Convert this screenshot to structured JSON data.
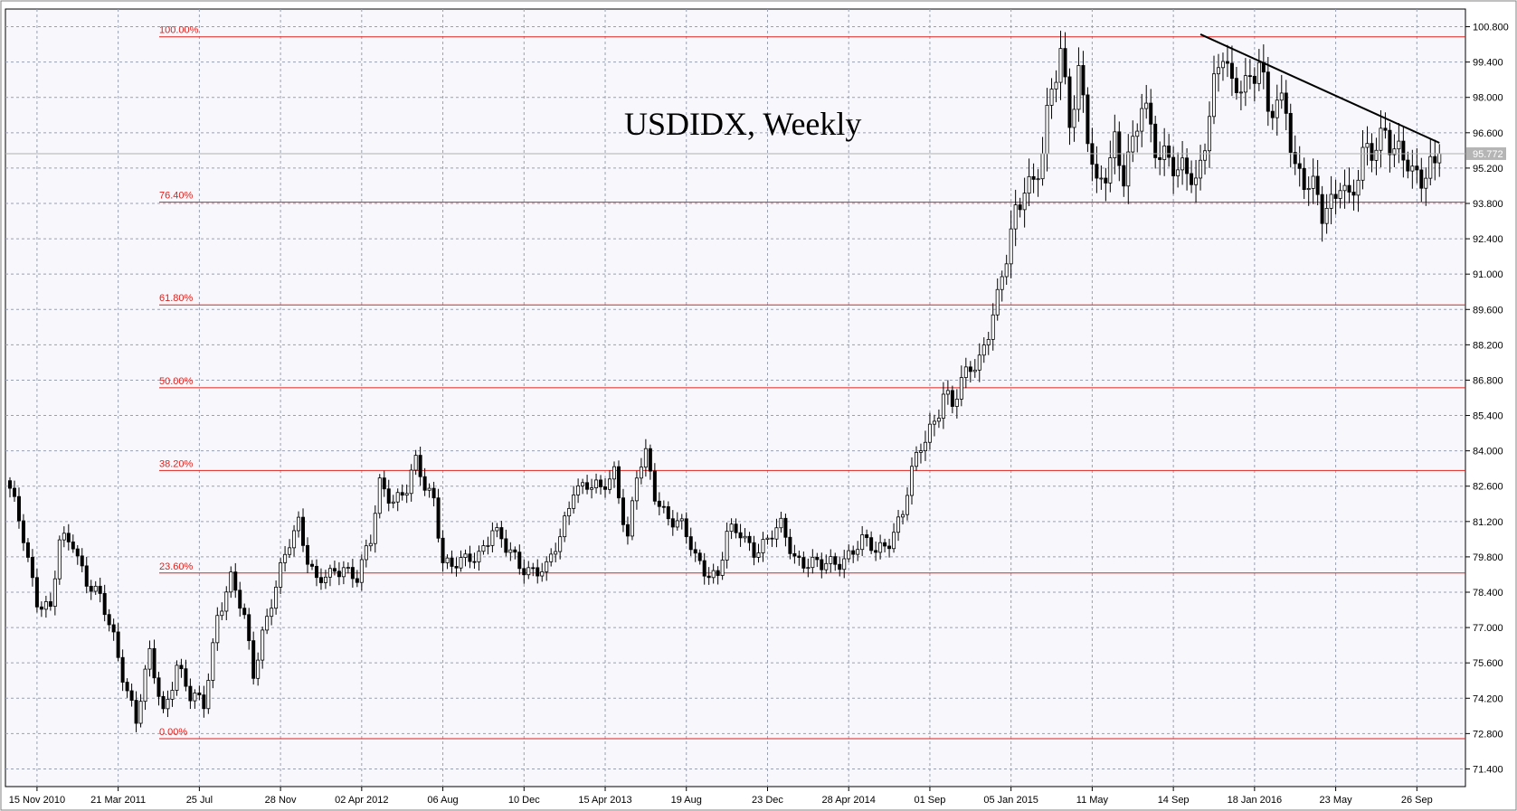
{
  "chart_data": {
    "type": "candlestick",
    "title": "USDIDX, Weekly",
    "ylim": [
      70.7,
      101.5
    ],
    "y_ticks": [
      "100.800",
      "99.400",
      "98.000",
      "96.600",
      "95.200",
      "93.800",
      "92.400",
      "91.000",
      "89.600",
      "88.200",
      "86.800",
      "85.400",
      "84.000",
      "82.600",
      "81.200",
      "79.800",
      "78.400",
      "77.000",
      "75.600",
      "74.200",
      "72.800",
      "71.400"
    ],
    "current_price": "95.772",
    "x_ticks": [
      {
        "label": "15 Nov 2010",
        "week": 6
      },
      {
        "label": "21 Mar 2011",
        "week": 24
      },
      {
        "label": "25 Jul",
        "week": 42
      },
      {
        "label": "28 Nov",
        "week": 60
      },
      {
        "label": "02 Apr 2012",
        "week": 78
      },
      {
        "label": "06 Aug",
        "week": 96
      },
      {
        "label": "10 Dec",
        "week": 114
      },
      {
        "label": "15 Apr 2013",
        "week": 132
      },
      {
        "label": "19 Aug",
        "week": 150
      },
      {
        "label": "23 Dec",
        "week": 168
      },
      {
        "label": "28 Apr 2014",
        "week": 186
      },
      {
        "label": "01 Sep",
        "week": 204
      },
      {
        "label": "05 Jan 2015",
        "week": 222
      },
      {
        "label": "11 May",
        "week": 240
      },
      {
        "label": "14 Sep",
        "week": 258
      },
      {
        "label": "18 Jan 2016",
        "week": 276
      },
      {
        "label": "23 May",
        "week": 294
      },
      {
        "label": "26 Sep",
        "week": 312
      }
    ],
    "fib_levels": [
      {
        "label": "100.00%",
        "value": 100.4
      },
      {
        "label": "76.40%",
        "value": 93.85
      },
      {
        "label": "61.80%",
        "value": 89.78
      },
      {
        "label": "50.00%",
        "value": 86.5
      },
      {
        "label": "38.20%",
        "value": 83.22
      },
      {
        "label": "23.60%",
        "value": 79.16
      },
      {
        "label": "0.00%",
        "value": 72.6
      }
    ],
    "trendline": {
      "start": {
        "week": 264,
        "value": 100.5
      },
      "end": {
        "week": 317,
        "value": 96.2
      }
    },
    "anchors": [
      [
        0,
        82.3
      ],
      [
        3,
        80.6
      ],
      [
        6,
        78.2
      ],
      [
        9,
        77.6
      ],
      [
        11,
        80.3
      ],
      [
        14,
        80.5
      ],
      [
        17,
        78.9
      ],
      [
        20,
        78.0
      ],
      [
        23,
        76.6
      ],
      [
        27,
        74.0
      ],
      [
        28,
        73.3
      ],
      [
        31,
        75.8
      ],
      [
        34,
        73.7
      ],
      [
        37,
        75.6
      ],
      [
        40,
        74.1
      ],
      [
        43,
        74.0
      ],
      [
        46,
        77.6
      ],
      [
        49,
        78.8
      ],
      [
        52,
        77.3
      ],
      [
        54,
        75.3
      ],
      [
        56,
        76.9
      ],
      [
        59,
        78.5
      ],
      [
        62,
        80.3
      ],
      [
        64,
        81.3
      ],
      [
        66,
        79.9
      ],
      [
        68,
        78.8
      ],
      [
        71,
        78.9
      ],
      [
        74,
        79.5
      ],
      [
        77,
        79.1
      ],
      [
        80,
        80.3
      ],
      [
        82,
        82.6
      ],
      [
        85,
        82.2
      ],
      [
        88,
        82.5
      ],
      [
        90,
        83.4
      ],
      [
        92,
        82.5
      ],
      [
        94,
        82.2
      ],
      [
        96,
        79.8
      ],
      [
        98,
        79.4
      ],
      [
        101,
        79.5
      ],
      [
        104,
        80.0
      ],
      [
        107,
        81.0
      ],
      [
        110,
        80.0
      ],
      [
        113,
        79.5
      ],
      [
        116,
        79.4
      ],
      [
        119,
        79.2
      ],
      [
        122,
        80.5
      ],
      [
        125,
        82.7
      ],
      [
        128,
        82.6
      ],
      [
        131,
        82.3
      ],
      [
        134,
        83.3
      ],
      [
        137,
        80.6
      ],
      [
        139,
        82.9
      ],
      [
        141,
        83.7
      ],
      [
        143,
        82.3
      ],
      [
        146,
        81.5
      ],
      [
        149,
        80.9
      ],
      [
        152,
        79.7
      ],
      [
        155,
        79.3
      ],
      [
        157,
        79.1
      ],
      [
        159,
        80.6
      ],
      [
        162,
        80.7
      ],
      [
        165,
        80.2
      ],
      [
        168,
        80.4
      ],
      [
        171,
        80.9
      ],
      [
        174,
        79.9
      ],
      [
        177,
        79.6
      ],
      [
        180,
        79.3
      ],
      [
        183,
        79.6
      ],
      [
        186,
        80.0
      ],
      [
        189,
        80.3
      ],
      [
        192,
        80.0
      ],
      [
        195,
        80.6
      ],
      [
        198,
        81.5
      ],
      [
        200,
        83.0
      ],
      [
        202,
        84.2
      ],
      [
        205,
        85.4
      ],
      [
        207,
        86.3
      ],
      [
        209,
        85.6
      ],
      [
        211,
        86.5
      ],
      [
        213,
        87.5
      ],
      [
        215,
        87.8
      ],
      [
        217,
        88.8
      ],
      [
        219,
        89.8
      ],
      [
        221,
        91.5
      ],
      [
        223,
        93.5
      ],
      [
        225,
        95.0
      ],
      [
        227,
        94.6
      ],
      [
        229,
        95.5
      ],
      [
        231,
        98.0
      ],
      [
        233,
        100.0
      ],
      [
        235,
        97.5
      ],
      [
        237,
        99.0
      ],
      [
        239,
        96.2
      ],
      [
        241,
        94.0
      ],
      [
        243,
        95.3
      ],
      [
        245,
        96.6
      ],
      [
        247,
        95.0
      ],
      [
        249,
        95.7
      ],
      [
        251,
        97.5
      ],
      [
        253,
        97.0
      ],
      [
        255,
        96.0
      ],
      [
        257,
        95.8
      ],
      [
        259,
        94.5
      ],
      [
        261,
        95.0
      ],
      [
        263,
        94.6
      ],
      [
        265,
        96.8
      ],
      [
        267,
        98.5
      ],
      [
        269,
        99.5
      ],
      [
        271,
        98.0
      ],
      [
        273,
        98.8
      ],
      [
        275,
        99.0
      ],
      [
        277,
        99.6
      ],
      [
        279,
        97.0
      ],
      [
        281,
        97.5
      ],
      [
        283,
        97.8
      ],
      [
        285,
        95.5
      ],
      [
        287,
        94.8
      ],
      [
        289,
        94.0
      ],
      [
        291,
        93.2
      ],
      [
        293,
        93.9
      ],
      [
        295,
        95.2
      ],
      [
        297,
        93.9
      ],
      [
        299,
        94.6
      ],
      [
        301,
        95.7
      ],
      [
        303,
        96.2
      ],
      [
        305,
        97.2
      ],
      [
        307,
        95.8
      ],
      [
        309,
        95.4
      ],
      [
        311,
        94.6
      ],
      [
        313,
        95.1
      ],
      [
        315,
        95.6
      ],
      [
        317,
        95.77
      ]
    ]
  }
}
